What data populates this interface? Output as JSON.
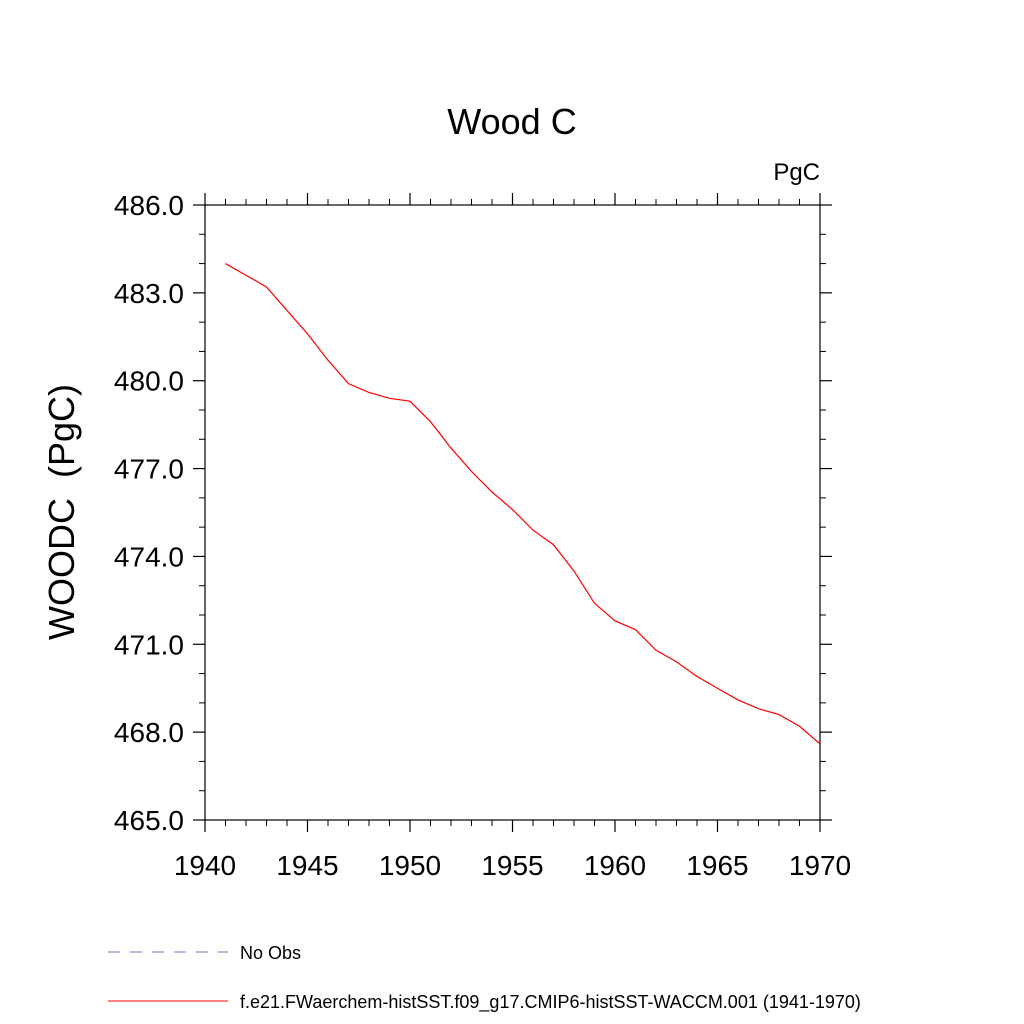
{
  "chart_data": {
    "type": "line",
    "title": "Wood C",
    "units_label": "PgC",
    "ylabel": "WOODC  (PgC)",
    "xlabel": "",
    "xlim": [
      1940,
      1970
    ],
    "ylim": [
      465.0,
      486.0
    ],
    "x_ticks": [
      1940,
      1945,
      1950,
      1955,
      1960,
      1965,
      1970
    ],
    "x_tick_labels": [
      "1940",
      "1945",
      "1950",
      "1955",
      "1960",
      "1965",
      "1970"
    ],
    "y_ticks": [
      465.0,
      468.0,
      471.0,
      474.0,
      477.0,
      480.0,
      483.0,
      486.0
    ],
    "y_tick_labels": [
      "465.0",
      "468.0",
      "471.0",
      "474.0",
      "477.0",
      "480.0",
      "483.0",
      "486.0"
    ],
    "grid": false,
    "legend_position": "bottom",
    "legend": [
      {
        "label": "No Obs",
        "color": "#7b6fc9",
        "dash": "dashed"
      },
      {
        "label": "f.e21.FWaerchem-histSST.f09_g17.CMIP6-histSST-WACCM.001 (1941-1970)",
        "color": "#ff0000",
        "dash": "solid"
      }
    ],
    "series": [
      {
        "color": "#ff0000",
        "x": [
          1941,
          1942,
          1943,
          1944,
          1945,
          1946,
          1947,
          1948,
          1949,
          1950,
          1951,
          1952,
          1953,
          1954,
          1955,
          1956,
          1957,
          1958,
          1959,
          1960,
          1961,
          1962,
          1963,
          1964,
          1965,
          1966,
          1967,
          1968,
          1969,
          1970
        ],
        "y": [
          484.0,
          483.6,
          483.2,
          482.4,
          481.6,
          480.7,
          479.9,
          479.6,
          479.4,
          479.3,
          478.6,
          477.7,
          476.9,
          476.2,
          475.6,
          474.9,
          474.4,
          473.5,
          472.4,
          471.8,
          471.5,
          470.8,
          470.4,
          469.9,
          469.5,
          469.1,
          468.8,
          468.6,
          468.2,
          467.6
        ]
      }
    ]
  }
}
